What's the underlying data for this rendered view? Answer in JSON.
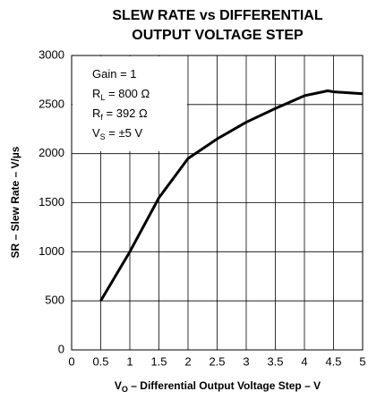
{
  "chart_data": {
    "type": "line",
    "title": [
      "SLEW RATE vs DIFFERENTIAL",
      "OUTPUT VOLTAGE STEP"
    ],
    "xlabel": {
      "text": "V",
      "sub": "O",
      "rest": " – Differential Output Voltage Step – V"
    },
    "ylabel": "SR – Slew Rate – V/µs",
    "annotations": [
      {
        "text": "Gain = 1"
      },
      {
        "text": "R",
        "sub": "L",
        "rest": " = 800 Ω"
      },
      {
        "text": "R",
        "sub": "f",
        "rest": " = 392 Ω"
      },
      {
        "text": "V",
        "sub": "S",
        "rest": " = ±5 V"
      }
    ],
    "x": [
      0.5,
      1,
      1.5,
      2,
      2.5,
      3,
      3.5,
      4,
      4.4,
      4.5,
      5
    ],
    "series": [
      {
        "color": "#000000",
        "values": [
          500,
          1000,
          1550,
          1950,
          2150,
          2320,
          2460,
          2590,
          2640,
          2630,
          2610
        ]
      }
    ],
    "xlim": [
      0,
      5
    ],
    "xticks": [
      0,
      0.5,
      1,
      1.5,
      2,
      2.5,
      3,
      3.5,
      4,
      4.5,
      5
    ],
    "ylim": [
      0,
      3000
    ],
    "yticks": [
      0,
      500,
      1000,
      1500,
      2000,
      2500,
      3000
    ],
    "grid": true
  }
}
